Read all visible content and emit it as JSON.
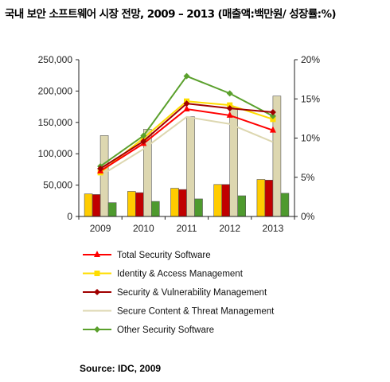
{
  "title": "국내 보안 소프트웨어 시장 전망, 2009 – 2013 (매출액:백만원/ 성장률:%)",
  "source": "Source: IDC, 2009",
  "chart_data": {
    "type": "bar+line",
    "categories": [
      "2009",
      "2010",
      "2011",
      "2012",
      "2013"
    ],
    "bar_series": [
      {
        "name": "Total Security Software",
        "color": "#ffcc00",
        "values": [
          36000,
          40000,
          45000,
          51000,
          59000
        ]
      },
      {
        "name": "Identity & Access Management",
        "color": "#c00000",
        "values": [
          35000,
          38000,
          43000,
          51000,
          58000
        ]
      },
      {
        "name": "Secure Content & Threat Management",
        "color": "#ddd7b0",
        "values": [
          129000,
          139000,
          159000,
          174000,
          192000
        ]
      },
      {
        "name": "Other Security Software",
        "color": "#4e9a2e",
        "values": [
          22000,
          24000,
          28000,
          33000,
          37000
        ]
      }
    ],
    "line_series": [
      {
        "name": "Total Security Software",
        "color": "#ff0000",
        "marker": "triangle",
        "values": [
          5.8,
          9.3,
          13.7,
          12.9,
          11.0
        ]
      },
      {
        "name": "Identity & Access Management",
        "color": "#ffdd00",
        "marker": "square",
        "values": [
          5.6,
          10.0,
          14.7,
          14.2,
          12.4
        ]
      },
      {
        "name": "Security & Vulnerability Management",
        "color": "#a00000",
        "marker": "diamond",
        "values": [
          6.1,
          9.6,
          14.4,
          13.8,
          13.3
        ]
      },
      {
        "name": "Secure Content & Threat Management",
        "color": "#ddd7b0",
        "marker": "none",
        "values": [
          5.2,
          8.6,
          12.7,
          11.8,
          9.5
        ]
      },
      {
        "name": "Other Security Software",
        "color": "#5aa02c",
        "marker": "diamond",
        "values": [
          6.4,
          10.3,
          17.9,
          15.7,
          12.8
        ]
      }
    ],
    "left_axis": {
      "ylim": [
        0,
        250000
      ],
      "ticks": [
        "0",
        "50,000",
        "100,000",
        "150,000",
        "200,000",
        "250,000"
      ]
    },
    "right_axis": {
      "ylim": [
        0,
        20
      ],
      "ticks": [
        "0%",
        "5%",
        "10%",
        "15%",
        "20%"
      ]
    },
    "legend": {
      "position": "bottom",
      "entries": [
        "Total Security Software",
        "Identity & Access Management",
        "Security & Vulnerability Management",
        "Secure Content & Threat Management",
        "Other Security Software"
      ]
    },
    "grid": false
  }
}
